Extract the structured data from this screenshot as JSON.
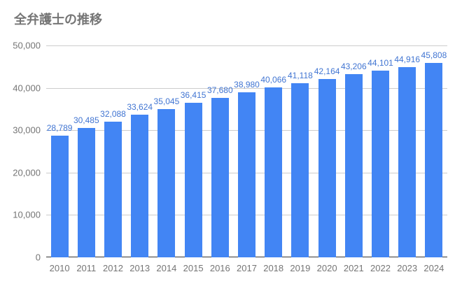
{
  "chart_data": {
    "type": "bar",
    "title": "全弁護士の推移",
    "categories": [
      "2010",
      "2011",
      "2012",
      "2013",
      "2014",
      "2015",
      "2016",
      "2017",
      "2018",
      "2019",
      "2020",
      "2021",
      "2022",
      "2023",
      "2024"
    ],
    "values": [
      28789,
      30485,
      32088,
      33624,
      35045,
      36415,
      37680,
      38980,
      40066,
      41118,
      42164,
      43206,
      44101,
      44916,
      45808
    ],
    "value_labels": [
      "28,789",
      "30,485",
      "32,088",
      "33,624",
      "35,045",
      "36,415",
      "37,680",
      "38,980",
      "40,066",
      "41,118",
      "42,164",
      "43,206",
      "44,101",
      "44,916",
      "45,808"
    ],
    "xlabel": "",
    "ylabel": "",
    "ylim": [
      0,
      50000
    ],
    "y_tick_values": [
      0,
      10000,
      20000,
      30000,
      40000,
      50000
    ],
    "y_tick_labels": [
      "0",
      "10,000",
      "20,000",
      "30,000",
      "40,000",
      "50,000"
    ],
    "grid": true,
    "legend_position": "none",
    "colors": {
      "bar": "#4285f4",
      "annotation_text": "#4175d2",
      "grid_line": "#cccccc",
      "axis_line": "#333333",
      "axis_text": "#757575",
      "title_text": "#757575",
      "background": "#ffffff"
    }
  }
}
